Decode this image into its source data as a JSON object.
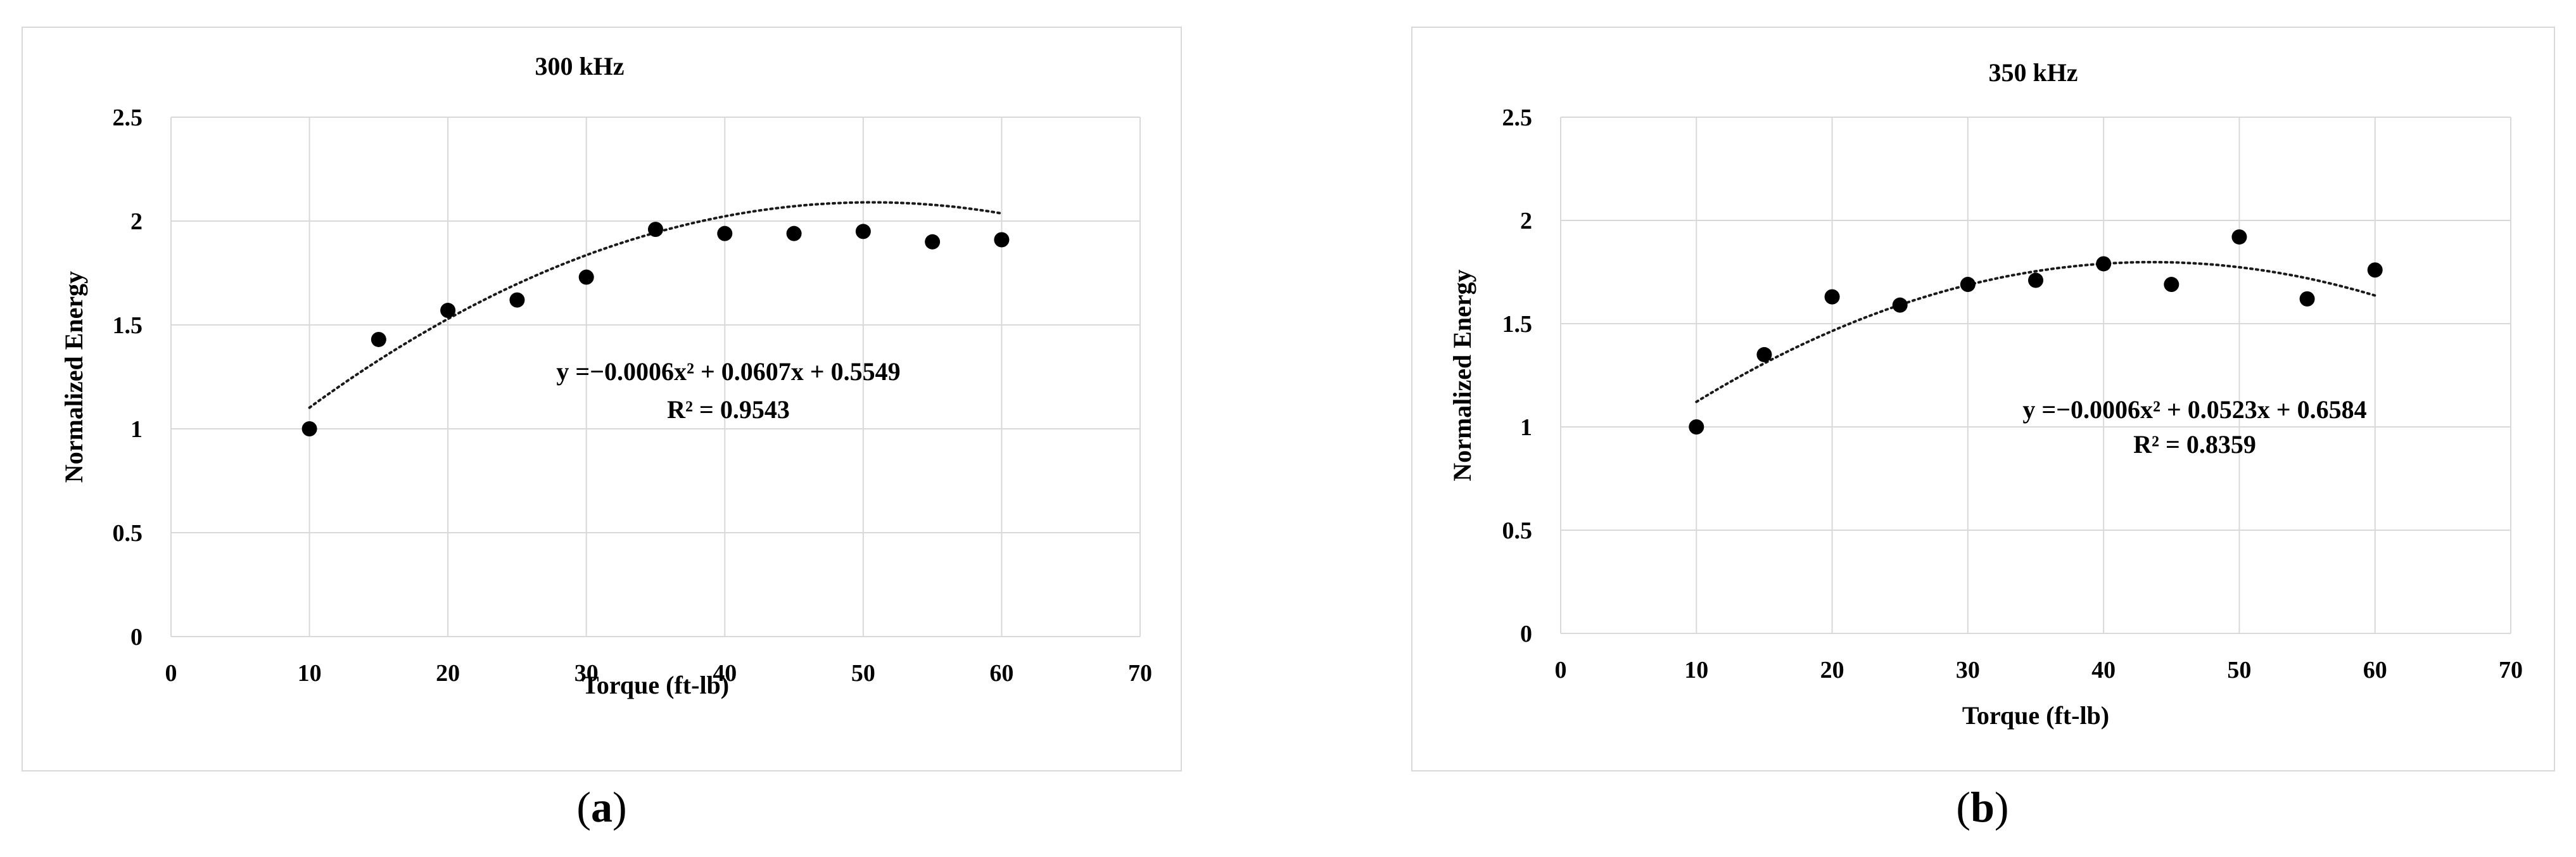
{
  "captions": [
    {
      "open": "(",
      "letter": "a",
      "close": ")"
    },
    {
      "open": "(",
      "letter": "b",
      "close": ")"
    }
  ],
  "chart_data": [
    {
      "type": "scatter",
      "title": "300 kHz",
      "xlabel": "Torque  (ft-lb)",
      "ylabel": "Normalized  Energy",
      "xlim": [
        0,
        70
      ],
      "ylim": [
        0,
        2.5
      ],
      "xticks": [
        "0",
        "10",
        "20",
        "30",
        "40",
        "50",
        "60",
        "70"
      ],
      "yticks": [
        "0",
        "0.5",
        "1",
        "1.5",
        "2",
        "2.5"
      ],
      "grid": true,
      "legend": "none",
      "x": [
        10,
        15,
        20,
        25,
        30,
        35,
        40,
        45,
        50,
        55,
        60
      ],
      "y": [
        1.0,
        1.43,
        1.57,
        1.62,
        1.73,
        1.96,
        1.94,
        1.94,
        1.95,
        1.9,
        1.91
      ],
      "trendline": {
        "type": "polynomial",
        "coefficients": [
          -0.0006,
          0.0607,
          0.5549
        ]
      },
      "equation": "y =−0.0006x² + 0.0607x + 0.5549",
      "r2": "R² = 0.9543"
    },
    {
      "type": "scatter",
      "title": "350 kHz",
      "xlabel": "Torque  (ft-lb)",
      "ylabel": "Normalized  Energy",
      "xlim": [
        0,
        70
      ],
      "ylim": [
        0,
        2.5
      ],
      "xticks": [
        "0",
        "10",
        "20",
        "30",
        "40",
        "50",
        "60",
        "70"
      ],
      "yticks": [
        "0",
        "0.5",
        "1",
        "1.5",
        "2",
        "2.5"
      ],
      "grid": true,
      "legend": "none",
      "x": [
        10,
        15,
        20,
        25,
        30,
        35,
        40,
        45,
        50,
        55,
        60
      ],
      "y": [
        1.0,
        1.35,
        1.63,
        1.59,
        1.69,
        1.71,
        1.79,
        1.69,
        1.92,
        1.62,
        1.76
      ],
      "trendline": {
        "type": "polynomial",
        "coefficients": [
          -0.0006,
          0.0523,
          0.6584
        ]
      },
      "equation": "y =−0.0006x² + 0.0523x + 0.6584",
      "r2": "R² = 0.8359"
    }
  ]
}
